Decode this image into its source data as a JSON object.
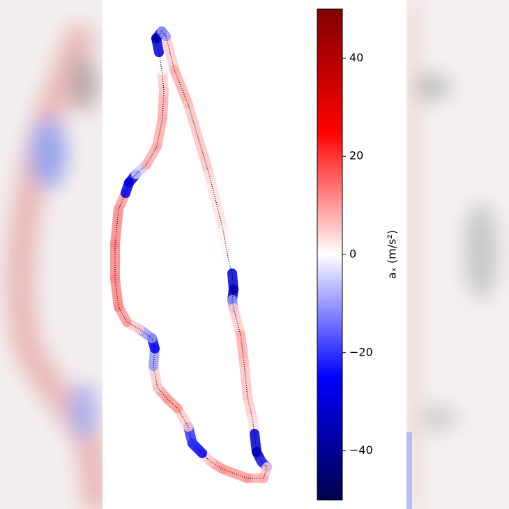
{
  "chart_data": {
    "type": "track",
    "x": [
      238,
      250,
      270,
      300,
      320,
      328,
      333,
      335,
      333,
      335,
      345,
      350,
      355,
      362,
      365,
      368,
      375,
      383,
      378,
      355,
      320,
      302,
      290,
      276,
      270,
      255,
      240,
      226,
      220,
      222,
      218,
      200,
      182,
      170,
      165,
      165,
      170,
      180,
      185,
      195,
      210,
      225,
      233,
      235,
      232,
      228,
      224,
      232
    ],
    "y": [
      678,
      630,
      580,
      480,
      400,
      355,
      338,
      315,
      300,
      288,
      250,
      210,
      160,
      130,
      108,
      82,
      68,
      60,
      44,
      44,
      57,
      68,
      80,
      94,
      118,
      144,
      158,
      174,
      205,
      230,
      245,
      258,
      268,
      290,
      330,
      380,
      430,
      453,
      468,
      480,
      494,
      520,
      560,
      600,
      630,
      655,
      675,
      685
    ],
    "values": [
      5,
      8,
      6,
      3,
      1,
      0,
      -30,
      -35,
      -10,
      5,
      8,
      6,
      5,
      3,
      -30,
      -35,
      -20,
      5,
      8,
      10,
      10,
      5,
      -25,
      -20,
      5,
      10,
      10,
      5,
      -10,
      -25,
      -10,
      5,
      10,
      12,
      12,
      12,
      10,
      -25,
      -30,
      -5,
      8,
      8,
      8,
      5,
      0,
      -30,
      -35,
      -10
    ],
    "xlim": [
      150,
      400
    ],
    "ylim": [
      30,
      700
    ],
    "colormap": "seismic",
    "colorbar": {
      "label": "aₓ (m/s²)",
      "clim": [
        -50,
        50
      ],
      "ticks": [
        40,
        20,
        0,
        {
          "value": -20,
          "label": "−20"
        },
        {
          "value": -40,
          "label": "−40"
        }
      ]
    }
  }
}
